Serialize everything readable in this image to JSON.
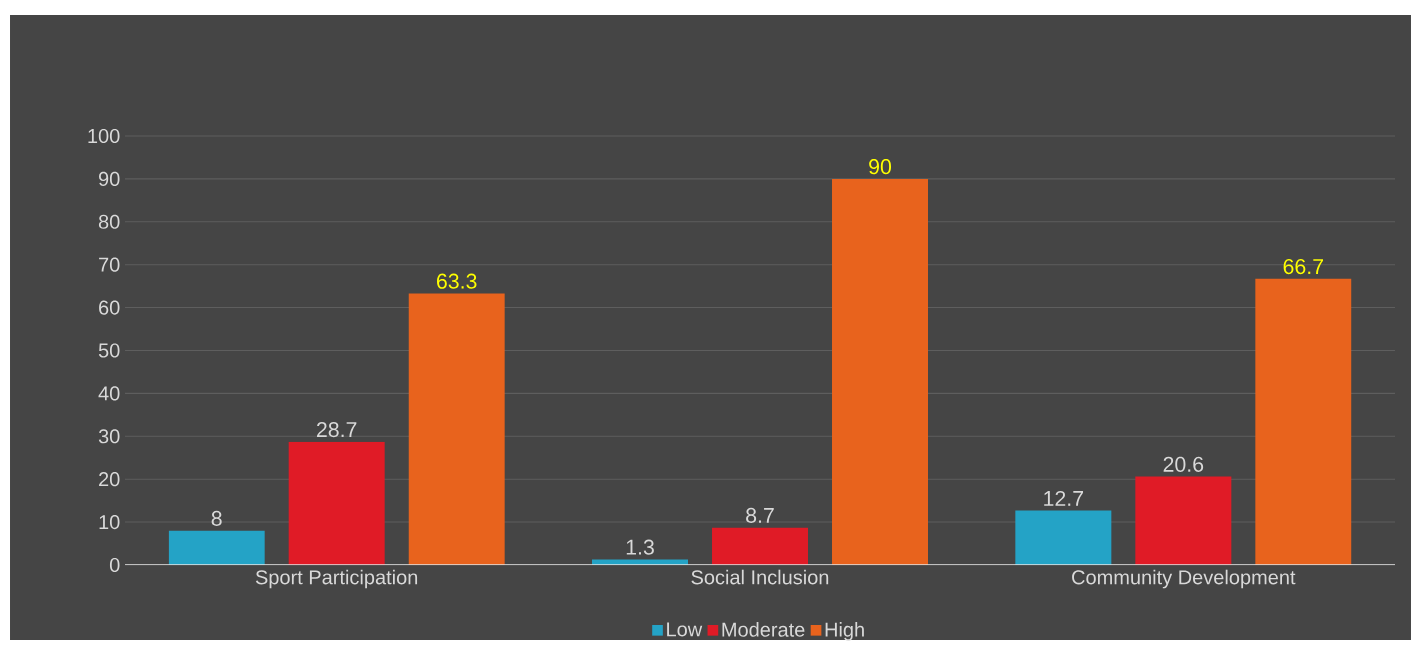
{
  "chart_data": {
    "type": "bar",
    "categories": [
      "Sport Participation",
      "Social Inclusion",
      "Community Development"
    ],
    "series": [
      {
        "name": "Low",
        "color": "#24a3c6",
        "values": [
          8,
          1.3,
          12.7
        ]
      },
      {
        "name": "Moderate",
        "color": "#e01b26",
        "values": [
          28.7,
          8.7,
          20.6
        ]
      },
      {
        "name": "High",
        "color": "#e8631d",
        "values": [
          63.3,
          90,
          66.7
        ]
      }
    ],
    "ylim": [
      0,
      100
    ],
    "yticks": [
      0,
      10,
      20,
      30,
      40,
      50,
      60,
      70,
      80,
      90,
      100
    ],
    "grid": "y",
    "legend": "bottom",
    "data_labels": true
  }
}
